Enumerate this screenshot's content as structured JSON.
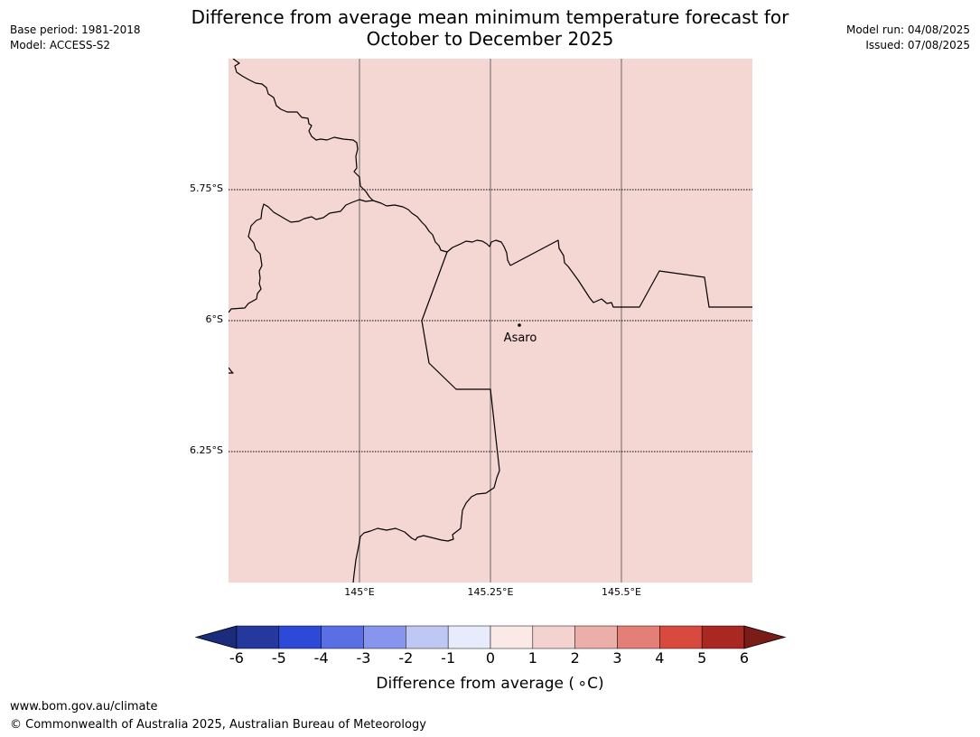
{
  "title": {
    "line1": "Difference from average mean minimum temperature forecast for",
    "line2": "October to December 2025"
  },
  "meta_left": {
    "base_period": "Base period: 1981-2018",
    "model": "Model: ACCESS-S2"
  },
  "meta_right": {
    "model_run": "Model run: 04/08/2025",
    "issued": "Issued: 07/08/2025"
  },
  "map": {
    "fill_color": "#f4d6d3",
    "fill_category": "1 to 2",
    "border_color": "#000000",
    "lat_labels": [
      "5.75°S",
      "6°S",
      "6.25°S"
    ],
    "lon_labels": [
      "145°E",
      "145.25°E",
      "145.5°E"
    ],
    "place": {
      "name": "Asaro"
    }
  },
  "colorbar": {
    "ticks": [
      "-6",
      "-5",
      "-4",
      "-3",
      "-2",
      "-1",
      "0",
      "1",
      "2",
      "3",
      "4",
      "5",
      "6"
    ],
    "colors": [
      "#25389e",
      "#2d49d8",
      "#5a6fe3",
      "#8796ec",
      "#bfc7f4",
      "#e8ebfb",
      "#fbe9e7",
      "#f4d2cf",
      "#ecaea9",
      "#e47f78",
      "#d74a3d",
      "#a92822"
    ],
    "under_color": "#1c2c7c",
    "over_color": "#7b1c18",
    "title": "Difference from average ( ∘C)"
  },
  "footer": {
    "url": "www.bom.gov.au/climate",
    "copyright": "© Commonwealth of Australia 2025, Australian Bureau of Meteorology"
  }
}
